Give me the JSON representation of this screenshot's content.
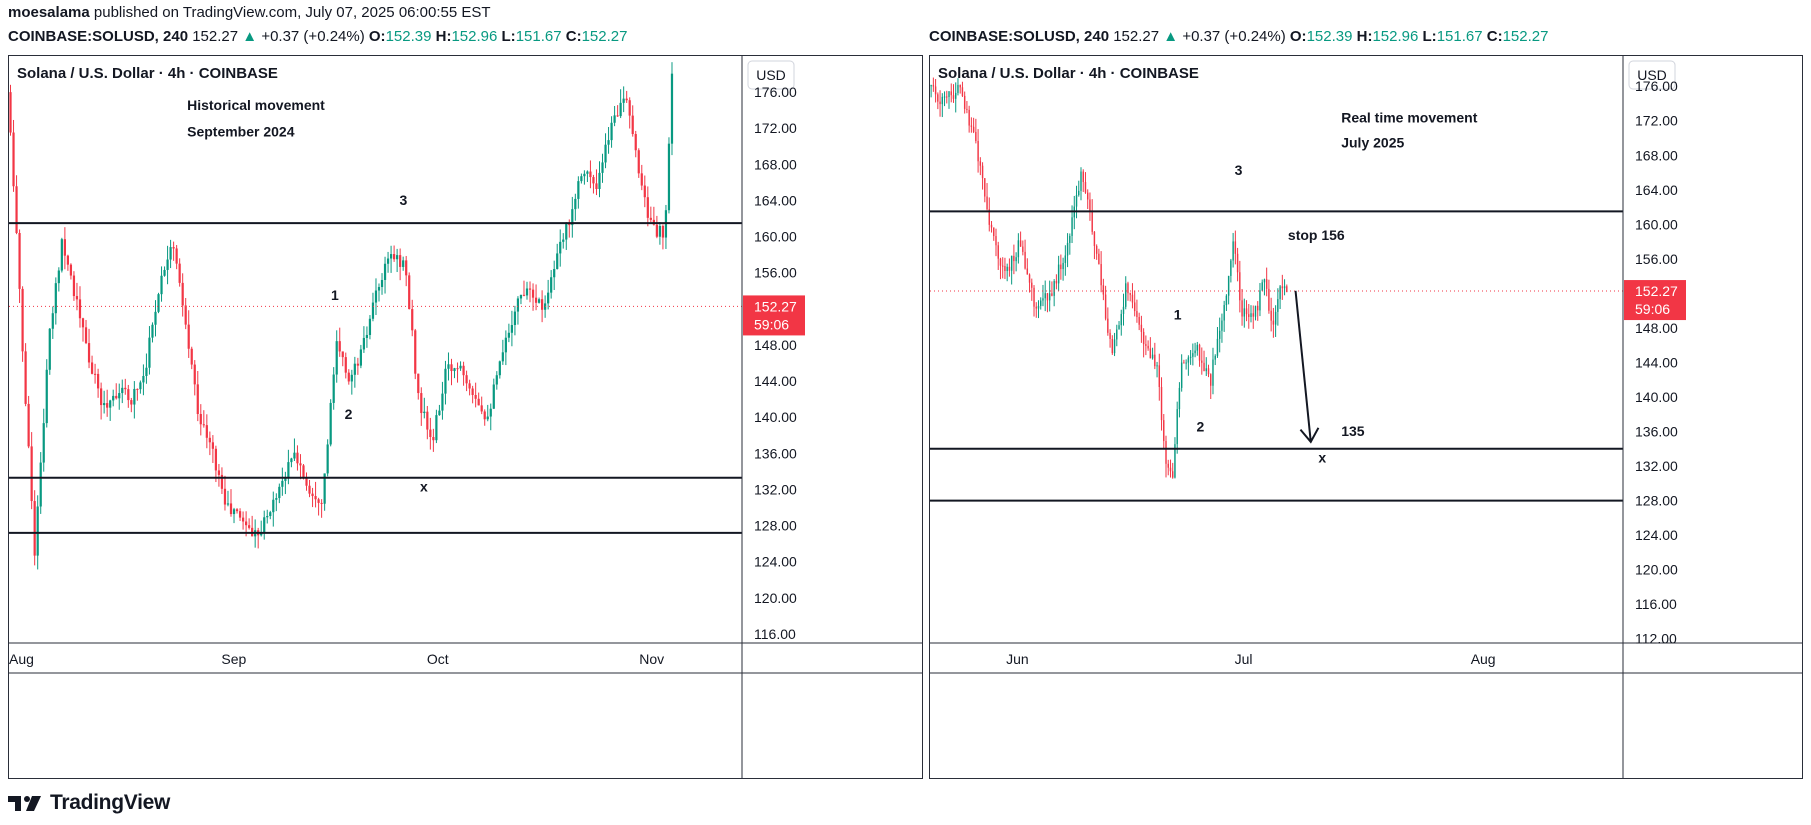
{
  "header": {
    "author": "moesalama",
    "published_text": "published on TradingView.com, July 07, 2025 06:00:55 EST"
  },
  "symbol_bar": {
    "symbol": "COINBASE:SOLUSD, 240",
    "last": "152.27",
    "change": "+0.37 (+0.24%)",
    "o_label": "O:",
    "o": "152.39",
    "h_label": "H:",
    "h": "152.96",
    "l_label": "L:",
    "l": "151.67",
    "c_label": "C:",
    "c": "152.27"
  },
  "colors": {
    "up": "#089981",
    "down": "#f23645",
    "line": "#131722",
    "price_tag": "#f23645"
  },
  "footer": {
    "brand": "TradingView"
  },
  "chart_data": [
    {
      "type": "candlestick",
      "title": "Solana / U.S. Dollar · 4h · COINBASE",
      "currency": "USD",
      "y_ticks": [
        "176.00",
        "172.00",
        "168.00",
        "164.00",
        "160.00",
        "156.00",
        "152.00",
        "148.00",
        "144.00",
        "140.00",
        "136.00",
        "132.00",
        "128.00",
        "124.00",
        "120.00",
        "116.00"
      ],
      "x_ticks": [
        "Aug",
        "Sep",
        "Oct",
        "Nov"
      ],
      "ylim": [
        115,
        180
      ],
      "x_range": [
        "2024-08-01",
        "2024-11-16"
      ],
      "last_price": "152.27",
      "countdown": "59:06",
      "horizontal_levels": [
        161.5,
        133.3,
        127.2
      ],
      "annotations": [
        {
          "text": "Historical movement",
          "date": "2024-08-27",
          "price": 174.0
        },
        {
          "text": "September 2024",
          "date": "2024-08-27",
          "price": 171.1
        },
        {
          "text": "3",
          "date": "2024-09-27",
          "price": 163.5
        },
        {
          "text": "1",
          "date": "2024-09-17",
          "price": 153.0
        },
        {
          "text": "2",
          "date": "2024-09-19",
          "price": 139.8
        },
        {
          "text": "x",
          "date": "2024-09-30",
          "price": 131.8
        }
      ],
      "price_path": [
        {
          "date": "2024-08-01",
          "price": 176.0
        },
        {
          "date": "2024-08-02",
          "price": 165.0
        },
        {
          "date": "2024-08-03",
          "price": 150.0
        },
        {
          "date": "2024-08-05",
          "price": 125.0
        },
        {
          "date": "2024-08-07",
          "price": 148.0
        },
        {
          "date": "2024-08-09",
          "price": 160.0
        },
        {
          "date": "2024-08-11",
          "price": 153.0
        },
        {
          "date": "2024-08-13",
          "price": 146.0
        },
        {
          "date": "2024-08-15",
          "price": 141.0
        },
        {
          "date": "2024-08-17",
          "price": 143.0
        },
        {
          "date": "2024-08-19",
          "price": 142.0
        },
        {
          "date": "2024-08-21",
          "price": 145.0
        },
        {
          "date": "2024-08-23",
          "price": 154.0
        },
        {
          "date": "2024-08-25",
          "price": 160.0
        },
        {
          "date": "2024-08-27",
          "price": 150.0
        },
        {
          "date": "2024-08-29",
          "price": 140.0
        },
        {
          "date": "2024-08-31",
          "price": 136.0
        },
        {
          "date": "2024-09-02",
          "price": 130.0
        },
        {
          "date": "2024-09-04",
          "price": 129.0
        },
        {
          "date": "2024-09-06",
          "price": 127.0
        },
        {
          "date": "2024-09-08",
          "price": 129.0
        },
        {
          "date": "2024-09-10",
          "price": 133.0
        },
        {
          "date": "2024-09-12",
          "price": 136.0
        },
        {
          "date": "2024-09-14",
          "price": 132.0
        },
        {
          "date": "2024-09-16",
          "price": 131.0
        },
        {
          "date": "2024-09-18",
          "price": 148.0
        },
        {
          "date": "2024-09-20",
          "price": 144.0
        },
        {
          "date": "2024-09-22",
          "price": 148.0
        },
        {
          "date": "2024-09-24",
          "price": 154.0
        },
        {
          "date": "2024-09-26",
          "price": 158.0
        },
        {
          "date": "2024-09-28",
          "price": 157.0
        },
        {
          "date": "2024-09-30",
          "price": 142.0
        },
        {
          "date": "2024-10-02",
          "price": 137.0
        },
        {
          "date": "2024-10-04",
          "price": 145.0
        },
        {
          "date": "2024-10-06",
          "price": 146.0
        },
        {
          "date": "2024-10-08",
          "price": 143.0
        },
        {
          "date": "2024-10-10",
          "price": 140.0
        },
        {
          "date": "2024-10-12",
          "price": 146.0
        },
        {
          "date": "2024-10-14",
          "price": 152.0
        },
        {
          "date": "2024-10-16",
          "price": 155.0
        },
        {
          "date": "2024-10-18",
          "price": 152.0
        },
        {
          "date": "2024-10-20",
          "price": 157.0
        },
        {
          "date": "2024-10-22",
          "price": 162.0
        },
        {
          "date": "2024-10-24",
          "price": 168.0
        },
        {
          "date": "2024-10-26",
          "price": 165.0
        },
        {
          "date": "2024-10-28",
          "price": 172.0
        },
        {
          "date": "2024-10-30",
          "price": 176.0
        },
        {
          "date": "2024-11-01",
          "price": 168.0
        },
        {
          "date": "2024-11-03",
          "price": 161.0
        },
        {
          "date": "2024-11-05",
          "price": 160.0
        },
        {
          "date": "2024-11-06",
          "price": 178.0
        }
      ]
    },
    {
      "type": "candlestick",
      "title": "Solana / U.S. Dollar · 4h · COINBASE",
      "currency": "USD",
      "y_ticks": [
        "176.00",
        "172.00",
        "168.00",
        "164.00",
        "160.00",
        "156.00",
        "152.00",
        "148.00",
        "144.00",
        "140.00",
        "136.00",
        "132.00",
        "128.00",
        "124.00",
        "120.00",
        "116.00",
        "112.00"
      ],
      "x_ticks": [
        "Jun",
        "Jul",
        "Aug"
      ],
      "ylim": [
        111.5,
        179.5
      ],
      "x_range": [
        "2025-05-22",
        "2025-08-21"
      ],
      "last_price": "152.27",
      "countdown": "59:06",
      "horizontal_levels": [
        161.5,
        134.0,
        128.0
      ],
      "annotations": [
        {
          "text": "Real time movement",
          "date": "2025-07-15",
          "price": 171.8
        },
        {
          "text": "July 2025",
          "date": "2025-07-15",
          "price": 168.9
        },
        {
          "text": "3",
          "date": "2025-07-01",
          "price": 165.7
        },
        {
          "text": "stop 156",
          "date": "2025-07-08",
          "price": 158.2
        },
        {
          "text": "1",
          "date": "2025-06-23",
          "price": 149.0
        },
        {
          "text": "2",
          "date": "2025-06-26",
          "price": 136.0
        },
        {
          "text": "135",
          "date": "2025-07-15",
          "price": 135.5
        },
        {
          "text": "x",
          "date": "2025-07-12",
          "price": 132.4
        }
      ],
      "arrow": {
        "from": {
          "date": "2025-07-09",
          "price": 152.3
        },
        "to": {
          "date": "2025-07-11",
          "price": 134.8
        }
      },
      "price_path": [
        {
          "date": "2025-05-22",
          "price": 176.0
        },
        {
          "date": "2025-05-24",
          "price": 174.0
        },
        {
          "date": "2025-05-26",
          "price": 176.0
        },
        {
          "date": "2025-05-28",
          "price": 170.0
        },
        {
          "date": "2025-05-30",
          "price": 160.0
        },
        {
          "date": "2025-06-01",
          "price": 154.0
        },
        {
          "date": "2025-06-03",
          "price": 158.0
        },
        {
          "date": "2025-06-05",
          "price": 150.0
        },
        {
          "date": "2025-06-07",
          "price": 152.0
        },
        {
          "date": "2025-06-09",
          "price": 157.0
        },
        {
          "date": "2025-06-11",
          "price": 166.0
        },
        {
          "date": "2025-06-13",
          "price": 157.0
        },
        {
          "date": "2025-06-15",
          "price": 145.0
        },
        {
          "date": "2025-06-17",
          "price": 153.0
        },
        {
          "date": "2025-06-19",
          "price": 147.0
        },
        {
          "date": "2025-06-21",
          "price": 143.0
        },
        {
          "date": "2025-06-22",
          "price": 133.0
        },
        {
          "date": "2025-06-23",
          "price": 131.0
        },
        {
          "date": "2025-06-24",
          "price": 143.0
        },
        {
          "date": "2025-06-26",
          "price": 146.0
        },
        {
          "date": "2025-06-28",
          "price": 142.0
        },
        {
          "date": "2025-06-30",
          "price": 152.0
        },
        {
          "date": "2025-07-01",
          "price": 158.0
        },
        {
          "date": "2025-07-02",
          "price": 150.0
        },
        {
          "date": "2025-07-04",
          "price": 150.0
        },
        {
          "date": "2025-07-05",
          "price": 154.0
        },
        {
          "date": "2025-07-06",
          "price": 148.0
        },
        {
          "date": "2025-07-07",
          "price": 152.0
        },
        {
          "date": "2025-07-08",
          "price": 152.3
        }
      ]
    }
  ]
}
